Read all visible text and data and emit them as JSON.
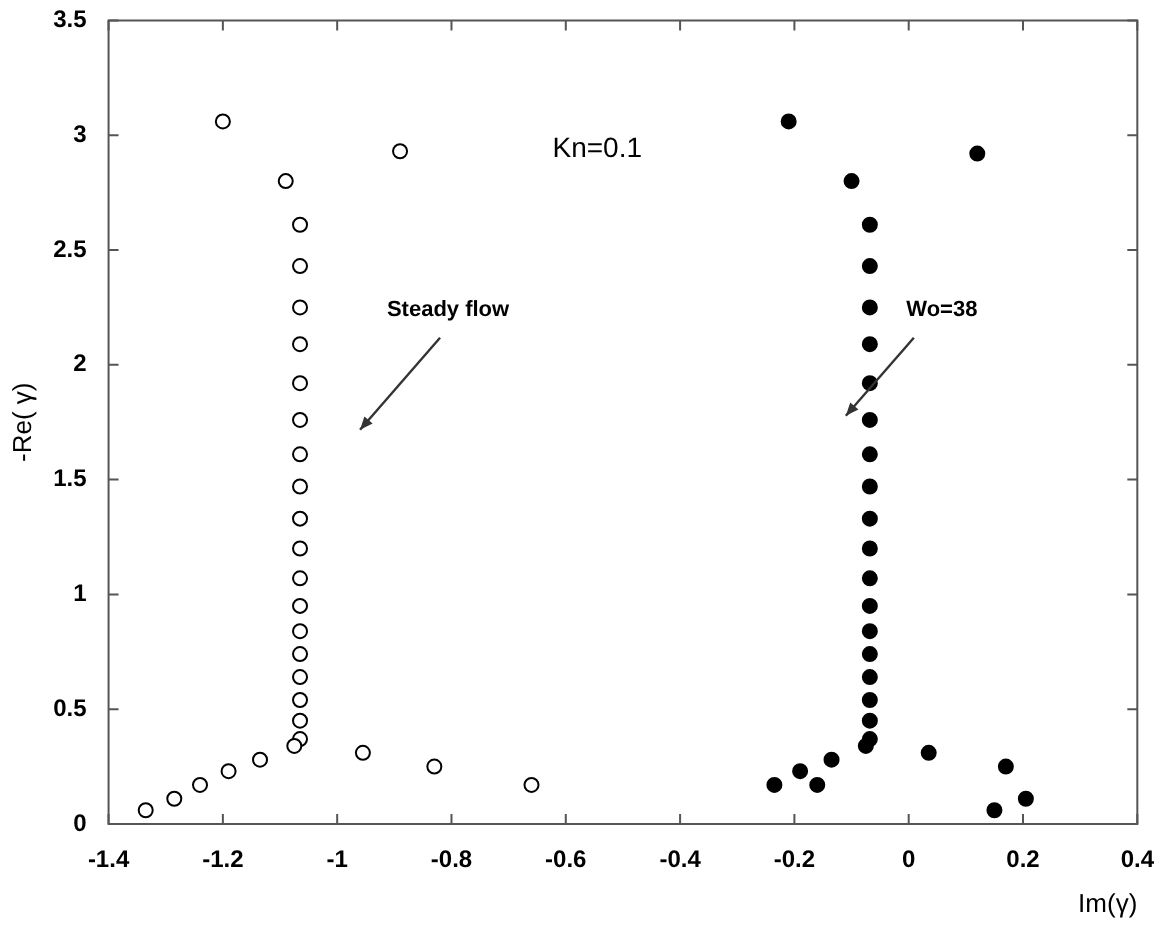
{
  "chart_data": {
    "type": "scatter",
    "xlabel": "Im(γ)",
    "ylabel": "-Re( γ)",
    "xlim": [
      -1.4,
      0.4
    ],
    "xticks": [
      -1.4,
      -1.2,
      -1,
      -0.8,
      -0.6,
      -0.4,
      -0.2,
      0,
      0.2,
      0.4
    ],
    "ylim": [
      0,
      3.5
    ],
    "yticks": [
      0,
      0.5,
      1,
      1.5,
      2,
      2.5,
      3,
      3.5
    ],
    "grid": false,
    "legend": false,
    "marker": "circle",
    "annotations": [
      "Kn=0.1",
      "Steady flow",
      "Wo=38"
    ],
    "series": [
      {
        "color": "#ffffff",
        "x": [
          -1.2,
          -1.09,
          -0.89,
          -1.065,
          -1.065,
          -1.065,
          -1.065,
          -1.065,
          -1.065,
          -1.065,
          -1.065,
          -1.065,
          -1.065,
          -1.065,
          -1.065,
          -1.065,
          -1.065,
          -1.065,
          -1.065,
          -1.065,
          -1.065,
          -1.075,
          -1.335,
          -1.285,
          -1.24,
          -1.19,
          -1.135,
          -0.955,
          -0.83,
          -0.66
        ],
        "values": [
          3.06,
          2.8,
          2.93,
          2.61,
          2.43,
          2.25,
          2.09,
          1.92,
          1.76,
          1.61,
          1.47,
          1.33,
          1.2,
          1.07,
          0.95,
          0.84,
          0.74,
          0.64,
          0.54,
          0.45,
          0.37,
          0.34,
          0.06,
          0.11,
          0.17,
          0.23,
          0.28,
          0.31,
          0.25,
          0.17
        ]
      },
      {
        "color": "#000000",
        "x": [
          -0.21,
          -0.1,
          0.12,
          -0.068,
          -0.068,
          -0.068,
          -0.068,
          -0.068,
          -0.068,
          -0.068,
          -0.068,
          -0.068,
          -0.068,
          -0.068,
          -0.068,
          -0.068,
          -0.068,
          -0.068,
          -0.068,
          -0.068,
          -0.068,
          -0.075,
          -0.235,
          -0.19,
          -0.16,
          -0.135,
          0.035,
          0.17,
          0.15,
          0.205
        ],
        "values": [
          3.06,
          2.8,
          2.92,
          2.61,
          2.43,
          2.25,
          2.09,
          1.92,
          1.76,
          1.61,
          1.47,
          1.33,
          1.2,
          1.07,
          0.95,
          0.84,
          0.74,
          0.64,
          0.54,
          0.45,
          0.37,
          0.34,
          0.17,
          0.23,
          0.17,
          0.28,
          0.31,
          0.25,
          0.06,
          0.11
        ]
      }
    ]
  }
}
